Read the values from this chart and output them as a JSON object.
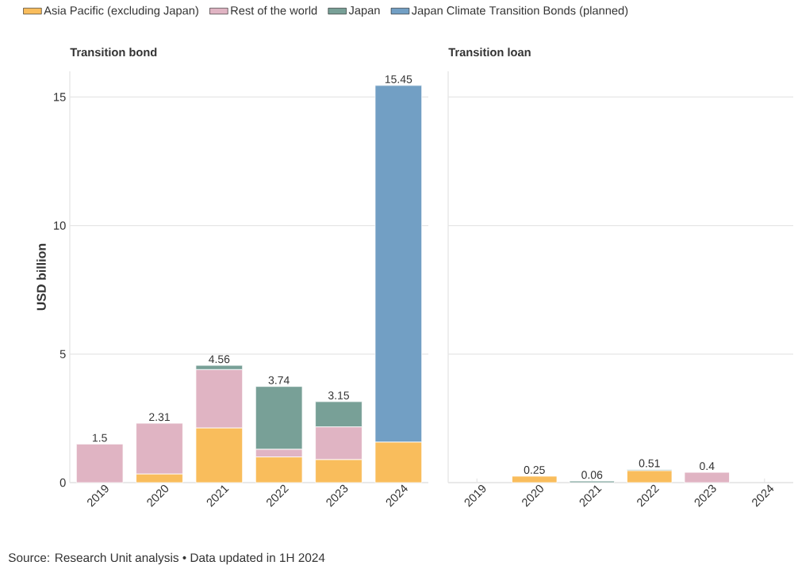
{
  "chart_data": [
    {
      "type": "bar",
      "title": "Transition bond",
      "ylabel": "USD billion",
      "stacked": true,
      "categories": [
        "2019",
        "2020",
        "2021",
        "2022",
        "2023",
        "2024"
      ],
      "ylim": [
        0,
        16
      ],
      "yticks": [
        0,
        5,
        10,
        15
      ],
      "grid": "y",
      "legend": "top",
      "series": [
        {
          "name": "Asia Pacific (excluding Japan)",
          "color": "#f9bd5c",
          "values": [
            null,
            0.34,
            2.13,
            1.0,
            0.9,
            1.58
          ]
        },
        {
          "name": "Rest of the world",
          "color": "#e0b4c3",
          "values": [
            1.5,
            1.97,
            2.27,
            0.3,
            1.27,
            null
          ]
        },
        {
          "name": "Japan",
          "color": "#78a097",
          "values": [
            null,
            null,
            0.16,
            2.44,
            0.98,
            null
          ]
        },
        {
          "name": "Japan Climate Transition Bonds (planned)",
          "color": "#729fc4",
          "values": [
            null,
            null,
            null,
            null,
            null,
            13.87
          ]
        }
      ],
      "totals": [
        "1.5",
        "2.31",
        "4.56",
        "3.74",
        "3.15",
        "15.45"
      ],
      "annotations": [
        "Source: Research Unit analysis • Data updated in 1H 2024"
      ]
    },
    {
      "type": "bar",
      "title": "Transition loan",
      "stacked": true,
      "categories": [
        "2019",
        "2020",
        "2021",
        "2022",
        "2023",
        "2024"
      ],
      "ylim": [
        0,
        16
      ],
      "yticks": [
        0,
        5,
        10,
        15
      ],
      "grid": "y",
      "tick_labels": "x",
      "series": [
        {
          "color": "#f9bd5c",
          "values": [
            null,
            0.25,
            null,
            0.47,
            null,
            null
          ]
        },
        {
          "color": "#e0b4c3",
          "values": [
            null,
            null,
            null,
            null,
            0.4,
            null
          ]
        },
        {
          "color": "#78a097",
          "values": [
            null,
            null,
            0.06,
            0.04,
            null,
            null
          ]
        },
        {
          "color": "#729fc4",
          "values": [
            null,
            null,
            null,
            null,
            null,
            null
          ]
        }
      ],
      "totals": [
        null,
        "0.25",
        "0.06",
        "0.51",
        "0.4",
        null
      ]
    }
  ]
}
